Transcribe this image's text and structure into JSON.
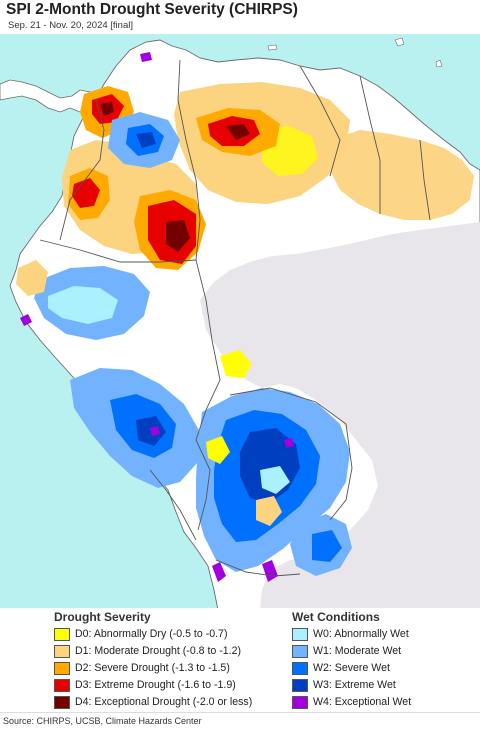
{
  "header": {
    "title": "SPI 2-Month Drought Severity (CHIRPS)",
    "subtitle": "Sep. 21 - Nov. 20, 2024 [final]"
  },
  "map": {
    "ocean_color": "#b9f0f0",
    "land_color": "#ffffff",
    "no_data_color": "#e8e6ea",
    "border_color": "#6b6b6b"
  },
  "legend": {
    "drought": {
      "heading": "Drought Severity",
      "items": [
        {
          "code": "D0",
          "label": "D0: Abnormally Dry (-0.5 to -0.7)",
          "color": "#ffff00"
        },
        {
          "code": "D1",
          "label": "D1: Moderate Drought (-0.8 to -1.2)",
          "color": "#fcd37f"
        },
        {
          "code": "D2",
          "label": "D2: Severe Drought (-1.3 to -1.5)",
          "color": "#ffaa00"
        },
        {
          "code": "D3",
          "label": "D3: Extreme Drought (-1.6 to -1.9)",
          "color": "#e60000"
        },
        {
          "code": "D4",
          "label": "D4: Exceptional Drought (-2.0 or less)",
          "color": "#730000"
        }
      ]
    },
    "wet": {
      "heading": "Wet Conditions",
      "items": [
        {
          "code": "W0",
          "label": "W0: Abnormally Wet",
          "color": "#aaf0ff"
        },
        {
          "code": "W1",
          "label": "W1: Moderate Wet",
          "color": "#73b2ff"
        },
        {
          "code": "W2",
          "label": "W2: Severe Wet",
          "color": "#0070ff"
        },
        {
          "code": "W3",
          "label": "W3: Extreme Wet",
          "color": "#0040c0"
        },
        {
          "code": "W4",
          "label": "W4: Exceptional Wet",
          "color": "#a000e0"
        }
      ]
    }
  },
  "footer": {
    "source": "Source: CHIRPS, UCSB, Climate Hazards Center"
  }
}
